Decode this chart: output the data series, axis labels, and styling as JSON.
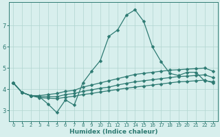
{
  "xlabel": "Humidex (Indice chaleur)",
  "x": [
    0,
    1,
    2,
    3,
    4,
    5,
    6,
    7,
    8,
    9,
    10,
    11,
    12,
    13,
    14,
    15,
    16,
    17,
    18,
    19,
    20,
    21,
    22,
    23
  ],
  "line_main": [
    4.3,
    3.85,
    3.7,
    3.65,
    3.3,
    2.9,
    3.5,
    3.25,
    4.3,
    4.85,
    5.35,
    6.5,
    6.8,
    7.5,
    7.75,
    7.2,
    6.0,
    5.3,
    4.75,
    4.65,
    4.8,
    4.8,
    4.4,
    4.35
  ],
  "line_upper": [
    4.3,
    3.85,
    3.7,
    3.7,
    3.75,
    3.8,
    3.9,
    3.95,
    4.1,
    4.2,
    4.3,
    4.4,
    4.5,
    4.6,
    4.7,
    4.75,
    4.8,
    4.85,
    4.9,
    4.92,
    4.95,
    4.97,
    5.0,
    4.85
  ],
  "line_mid": [
    4.3,
    3.85,
    3.7,
    3.65,
    3.65,
    3.65,
    3.75,
    3.8,
    3.9,
    3.97,
    4.05,
    4.1,
    4.2,
    4.28,
    4.35,
    4.4,
    4.45,
    4.5,
    4.55,
    4.6,
    4.62,
    4.65,
    4.68,
    4.55
  ],
  "line_lower": [
    4.3,
    3.85,
    3.7,
    3.6,
    3.58,
    3.56,
    3.62,
    3.67,
    3.75,
    3.8,
    3.87,
    3.93,
    3.99,
    4.05,
    4.1,
    4.15,
    4.2,
    4.25,
    4.3,
    4.35,
    4.37,
    4.4,
    4.43,
    4.3
  ],
  "color": "#2d7a72",
  "bg_color": "#d8efed",
  "grid_color": "#b0d5d0",
  "tick_color": "#2d7a72",
  "ylim": [
    2.5,
    8.1
  ],
  "yticks": [
    3,
    4,
    5,
    6,
    7
  ],
  "xlim": [
    -0.5,
    23.5
  ],
  "marker_size": 2.5,
  "linewidth": 0.9
}
